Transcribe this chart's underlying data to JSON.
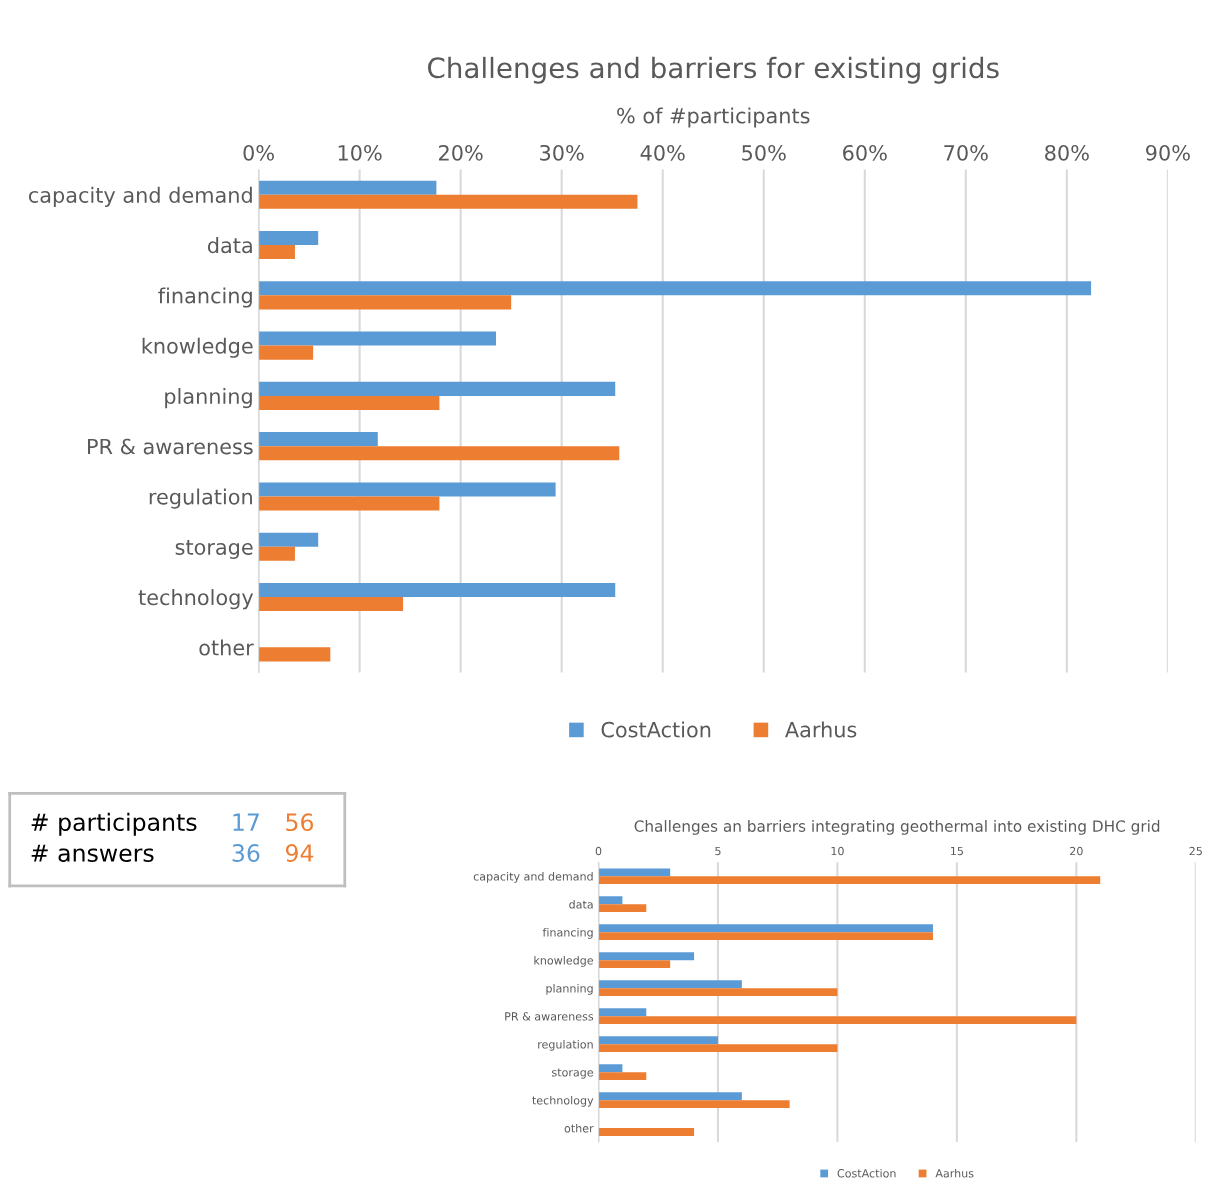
{
  "chart_data": [
    {
      "type": "bar",
      "orientation": "horizontal",
      "title": "Challenges and barriers for existing grids",
      "subtitle": "% of #participants",
      "categories": [
        "capacity and demand",
        "data",
        "financing",
        "knowledge",
        "planning",
        "PR & awareness",
        "regulation",
        "storage",
        "technology",
        "other"
      ],
      "series": [
        {
          "name": "CostAction",
          "color": "#5b9bd5",
          "values": [
            17.6,
            5.9,
            82.4,
            23.5,
            35.3,
            11.8,
            29.4,
            5.9,
            35.3,
            null
          ]
        },
        {
          "name": "Aarhus",
          "color": "#ed7d31",
          "values": [
            37.5,
            3.6,
            25,
            5.4,
            17.9,
            35.7,
            17.9,
            3.6,
            14.3,
            7.1
          ]
        }
      ],
      "xlim": [
        0,
        90
      ],
      "xticks": [
        {
          "value": 0,
          "label": "0%"
        },
        {
          "value": 10,
          "label": "10%"
        },
        {
          "value": 20,
          "label": "20%"
        },
        {
          "value": 30,
          "label": "30%"
        },
        {
          "value": 40,
          "label": "40%"
        },
        {
          "value": 50,
          "label": "50%"
        },
        {
          "value": 60,
          "label": "60%"
        },
        {
          "value": 70,
          "label": "70%"
        },
        {
          "value": 80,
          "label": "80%"
        },
        {
          "value": 90,
          "label": "90%"
        }
      ],
      "grid": "x",
      "legend": "bottom"
    },
    {
      "type": "other",
      "annotations": [
        "# participants",
        "17",
        "56",
        "# answers",
        "36",
        "94"
      ],
      "colors": [
        "#000000",
        "#5b9bd5",
        "#ed7d31"
      ]
    },
    {
      "type": "bar",
      "orientation": "horizontal",
      "title": "Challenges an barriers integrating geothermal into existing DHC grid",
      "categories": [
        "capacity and demand",
        "data",
        "financing",
        "knowledge",
        "planning",
        "PR & awareness",
        "regulation",
        "storage",
        "technology",
        "other"
      ],
      "series": [
        {
          "name": "CostAction",
          "color": "#5b9bd5",
          "values": [
            3,
            1,
            14,
            4,
            6,
            2,
            5,
            1,
            6,
            null
          ]
        },
        {
          "name": "Aarhus",
          "color": "#ed7d31",
          "values": [
            21,
            2,
            14,
            3,
            10,
            20,
            10,
            2,
            8,
            4
          ]
        }
      ],
      "xlim": [
        0,
        25
      ],
      "xticks": [
        0,
        5,
        10,
        15,
        20,
        25
      ],
      "grid": "x",
      "legend": "bottom"
    }
  ]
}
